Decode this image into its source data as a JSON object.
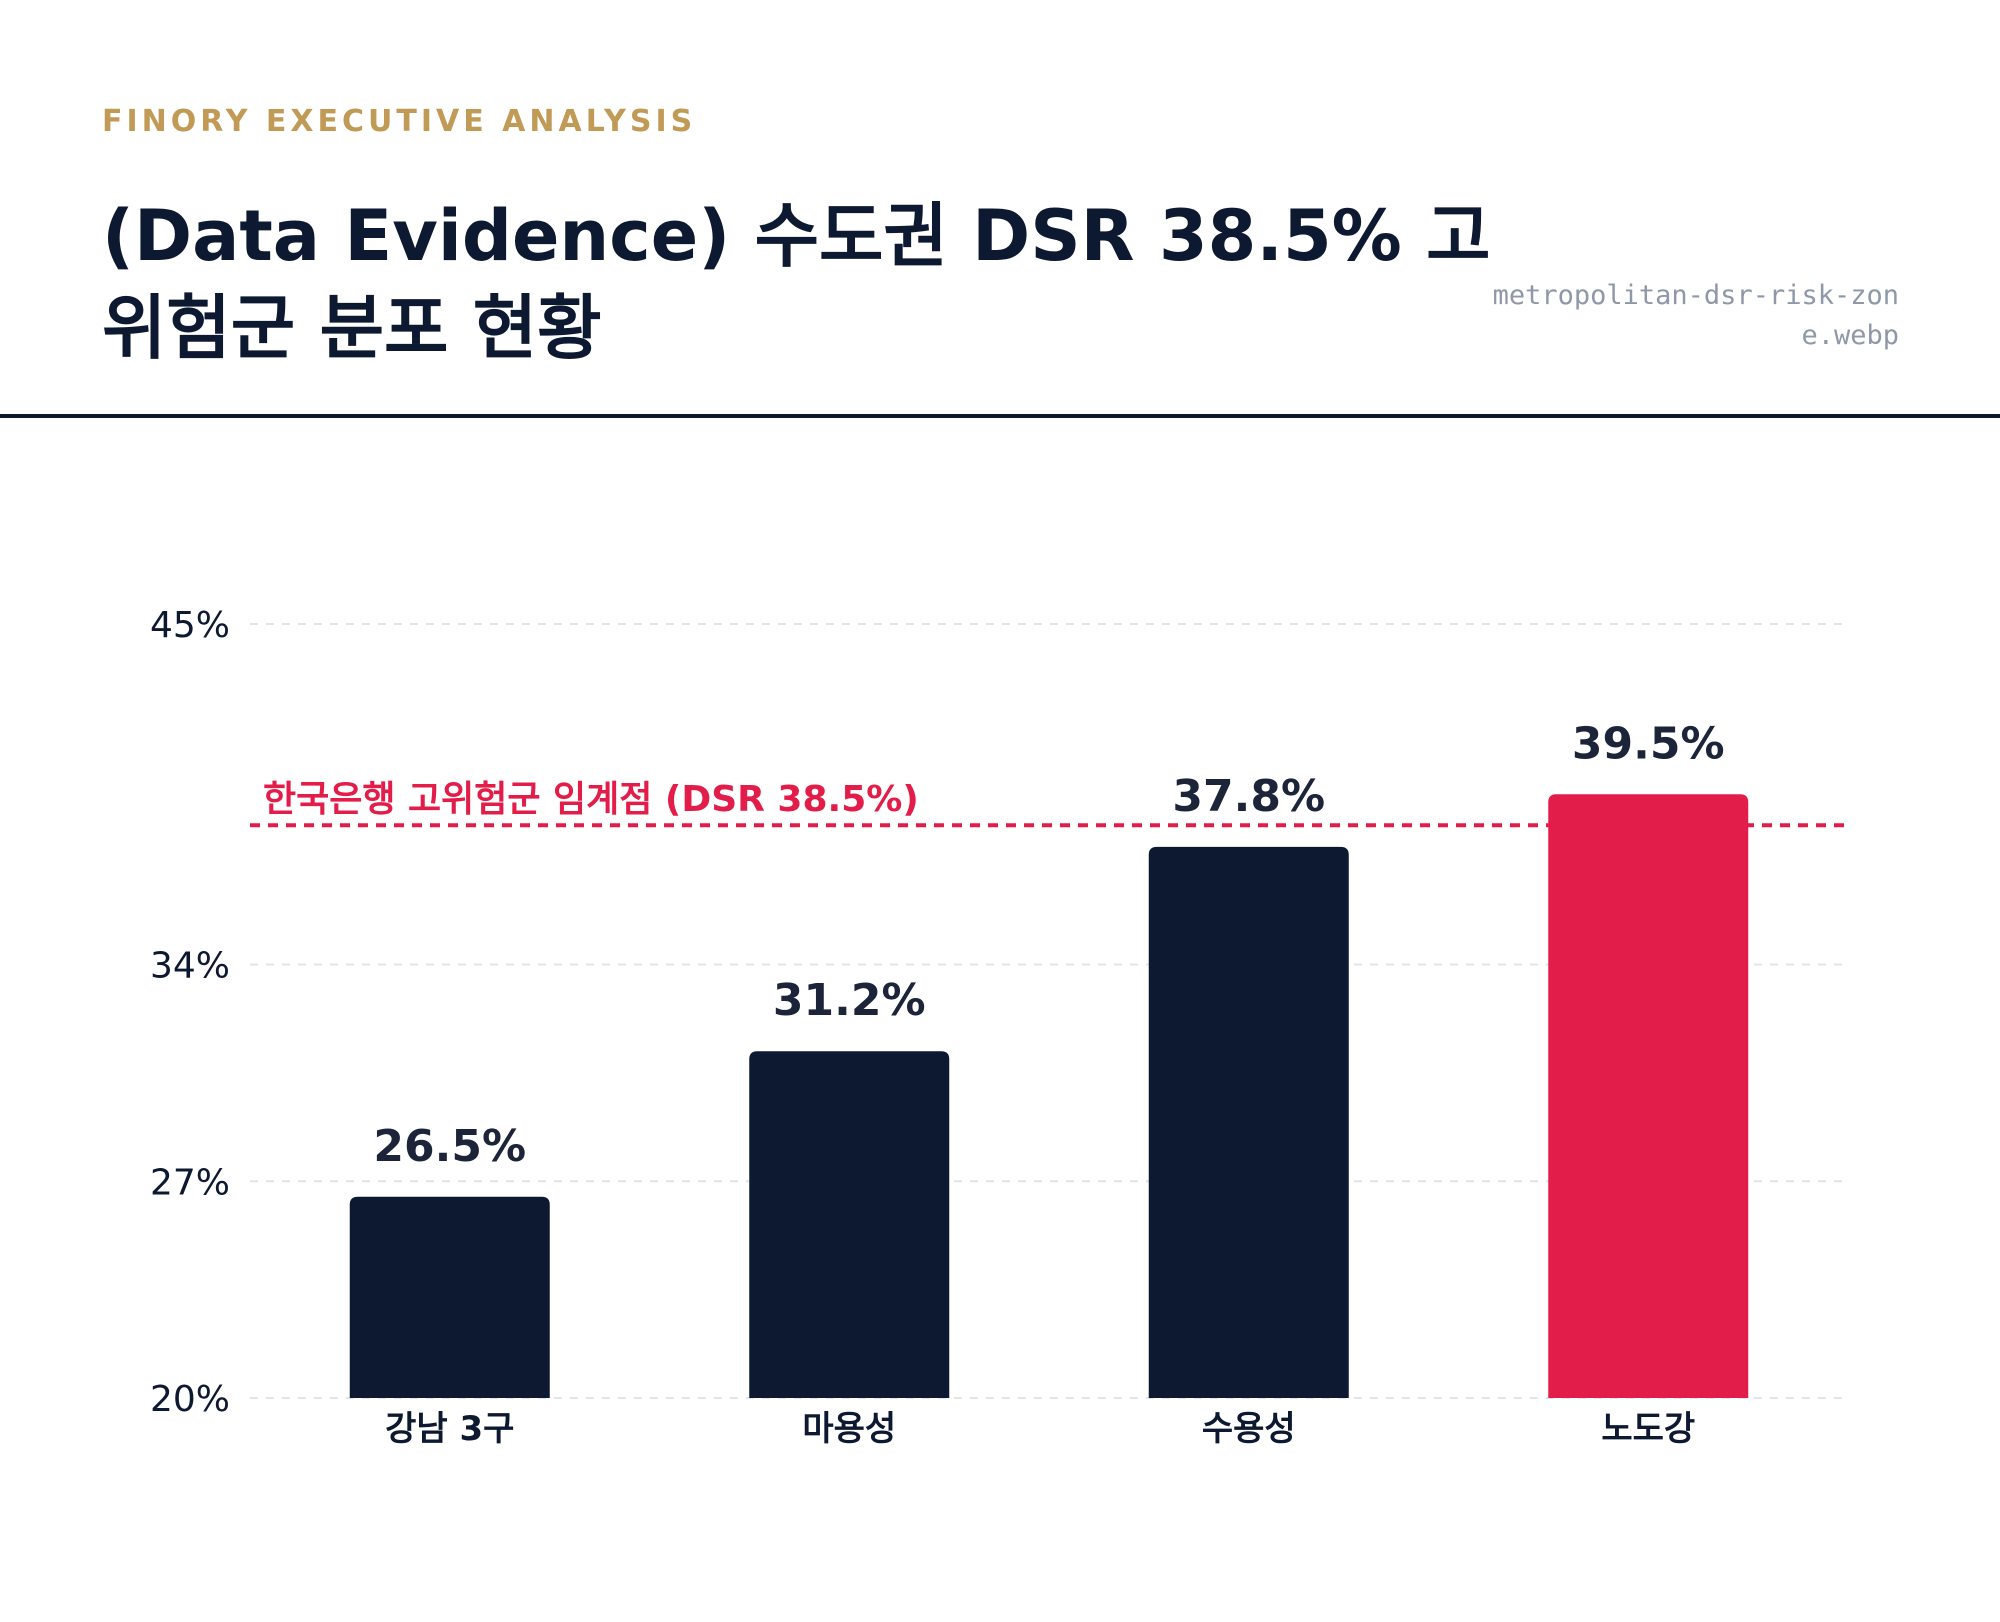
{
  "header": {
    "kicker": "FINORY EXECUTIVE ANALYSIS",
    "title": "(Data Evidence) 수도권 DSR 38.5% 고위험군 분포 현황",
    "filename": "metropolitan-dsr-risk-zone.webp"
  },
  "colors": {
    "bar_default": "#0d1931",
    "bar_highlight": "#e31d4a",
    "threshold": "#e31d4a",
    "gridline": "#e2e4e8",
    "kicker": "#c19a55"
  },
  "chart_data": {
    "type": "bar",
    "categories": [
      "강남 3구",
      "마용성",
      "수용성",
      "노도강"
    ],
    "values": [
      26.5,
      31.2,
      37.8,
      39.5
    ],
    "value_labels": [
      "26.5%",
      "31.2%",
      "37.8%",
      "39.5%"
    ],
    "highlight_index": 3,
    "ylim": [
      20,
      45
    ],
    "yticks": [
      20,
      27,
      34,
      45
    ],
    "ytick_labels": [
      "20%",
      "27%",
      "34%",
      "45%"
    ],
    "threshold": {
      "value": 38.5,
      "label": "한국은행 고위험군 임계점 (DSR 38.5%)"
    },
    "grid": true,
    "title": "",
    "xlabel": "",
    "ylabel": ""
  }
}
